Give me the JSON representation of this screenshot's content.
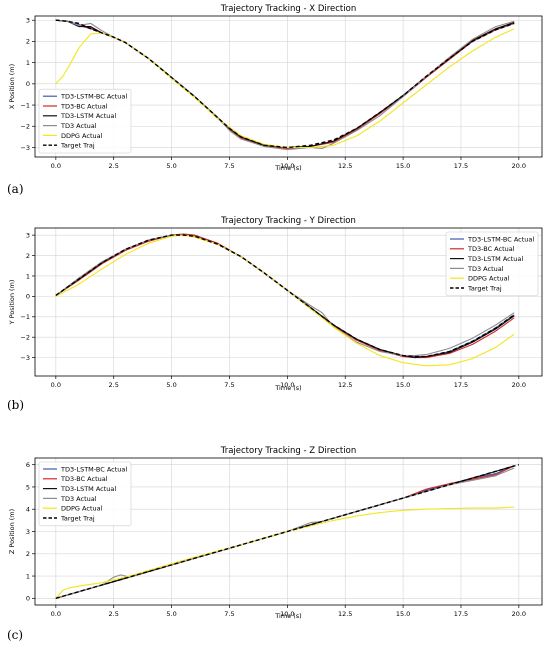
{
  "panel_labels": [
    "(a)",
    "(b)",
    "(c)"
  ],
  "chart_data": [
    {
      "type": "line",
      "title": "Trajectory Tracking - X Direction",
      "xlabel": "Time (s)",
      "ylabel": "X Position (m)",
      "xlim": [
        -0.9,
        21
      ],
      "ylim": [
        -3.45,
        3.2
      ],
      "xticks": [
        0.0,
        2.5,
        5.0,
        7.5,
        10.0,
        12.5,
        15.0,
        17.5,
        20.0
      ],
      "xtick_labels": [
        "0.0",
        "2.5",
        "5.0",
        "7.5",
        "10.0",
        "12.5",
        "15.0",
        "17.5",
        "20.0"
      ],
      "yticks": [
        -3,
        -2,
        -1,
        0,
        1,
        2,
        3
      ],
      "ytick_labels": [
        "−3",
        "−2",
        "−1",
        "0",
        "1",
        "2",
        "3"
      ],
      "grid": true,
      "legend_position": "lower-left",
      "series": [
        {
          "name": "TD3-LSTM-BC Actual",
          "color": "#3b5bb5",
          "dashed": false,
          "x": [
            0.0,
            0.5,
            1.0,
            1.5,
            2.0,
            2.5,
            3.0,
            4.0,
            5.0,
            6.0,
            7.0,
            7.5,
            8.0,
            9.0,
            10.0,
            11.0,
            12.0,
            13.0,
            14.0,
            15.0,
            16.0,
            17.0,
            18.0,
            19.0,
            19.8
          ],
          "y": [
            3.0,
            2.95,
            2.8,
            2.65,
            2.4,
            2.2,
            1.95,
            1.2,
            0.3,
            -0.6,
            -1.65,
            -2.1,
            -2.5,
            -2.9,
            -3.0,
            -2.95,
            -2.7,
            -2.15,
            -1.4,
            -0.55,
            0.35,
            1.2,
            2.0,
            2.55,
            2.85
          ]
        },
        {
          "name": "TD3-BC Actual",
          "color": "#d62728",
          "dashed": false,
          "x": [
            0.0,
            0.5,
            1.0,
            1.5,
            2.0,
            2.5,
            3.0,
            4.0,
            5.0,
            6.0,
            7.0,
            7.5,
            8.0,
            9.0,
            10.0,
            11.0,
            12.0,
            13.0,
            14.0,
            15.0,
            16.0,
            17.0,
            18.0,
            19.0,
            19.8
          ],
          "y": [
            3.0,
            2.95,
            2.75,
            2.6,
            2.4,
            2.2,
            1.95,
            1.2,
            0.3,
            -0.6,
            -1.6,
            -2.15,
            -2.55,
            -2.95,
            -3.05,
            -2.95,
            -2.75,
            -2.15,
            -1.4,
            -0.6,
            0.3,
            1.15,
            2.0,
            2.55,
            2.85
          ]
        },
        {
          "name": "TD3-LSTM Actual",
          "color": "#111111",
          "dashed": false,
          "x": [
            0.0,
            0.5,
            1.0,
            1.5,
            2.0,
            2.5,
            3.0,
            4.0,
            5.0,
            6.0,
            7.0,
            7.5,
            8.0,
            9.0,
            10.0,
            11.0,
            12.0,
            13.0,
            14.0,
            15.0,
            16.0,
            17.0,
            18.0,
            19.0,
            19.8
          ],
          "y": [
            3.0,
            2.95,
            2.7,
            2.7,
            2.4,
            2.2,
            1.95,
            1.2,
            0.3,
            -0.6,
            -1.6,
            -2.1,
            -2.5,
            -2.9,
            -3.0,
            -2.95,
            -2.7,
            -2.1,
            -1.35,
            -0.55,
            0.35,
            1.2,
            2.05,
            2.6,
            2.9
          ]
        },
        {
          "name": "TD3 Actual",
          "color": "#8c8c8c",
          "dashed": false,
          "x": [
            0.0,
            0.5,
            1.0,
            1.5,
            2.0,
            2.5,
            3.0,
            4.0,
            5.0,
            6.0,
            7.0,
            7.5,
            8.0,
            9.0,
            10.0,
            11.0,
            11.5,
            12.0,
            13.0,
            14.0,
            15.0,
            16.0,
            17.0,
            18.0,
            19.0,
            19.8
          ],
          "y": [
            3.0,
            2.95,
            2.75,
            2.85,
            2.5,
            2.2,
            1.95,
            1.2,
            0.3,
            -0.6,
            -1.6,
            -2.2,
            -2.6,
            -2.95,
            -3.1,
            -3.0,
            -3.05,
            -2.8,
            -2.2,
            -1.5,
            -0.6,
            0.35,
            1.25,
            2.1,
            2.7,
            2.95
          ]
        },
        {
          "name": "DDPG Actual",
          "color": "#f2e61d",
          "dashed": false,
          "x": [
            0.0,
            0.3,
            0.6,
            1.0,
            1.5,
            2.0,
            2.5,
            3.0,
            4.0,
            5.0,
            6.0,
            7.0,
            7.5,
            8.0,
            9.0,
            10.0,
            11.0,
            11.5,
            12.0,
            13.0,
            14.0,
            15.0,
            16.0,
            17.0,
            18.0,
            19.0,
            19.8
          ],
          "y": [
            0.0,
            0.35,
            0.9,
            1.7,
            2.35,
            2.4,
            2.2,
            1.95,
            1.2,
            0.25,
            -0.65,
            -1.65,
            -2.05,
            -2.45,
            -2.85,
            -3.0,
            -3.0,
            -2.95,
            -2.9,
            -2.45,
            -1.75,
            -0.9,
            -0.05,
            0.8,
            1.55,
            2.2,
            2.6
          ]
        },
        {
          "name": "Target Traj",
          "color": "#000000",
          "dashed": true,
          "x": [
            0.0,
            0.5,
            1.0,
            1.5,
            2.0,
            2.5,
            3.0,
            4.0,
            5.0,
            6.0,
            7.0,
            7.5,
            8.0,
            9.0,
            10.0,
            11.0,
            12.0,
            13.0,
            14.0,
            15.0,
            16.0,
            17.0,
            18.0,
            19.0,
            19.8
          ],
          "y": [
            3.0,
            2.95,
            2.85,
            2.6,
            2.4,
            2.2,
            1.95,
            1.2,
            0.3,
            -0.6,
            -1.6,
            -2.1,
            -2.5,
            -2.9,
            -3.0,
            -2.9,
            -2.65,
            -2.1,
            -1.35,
            -0.55,
            0.35,
            1.2,
            2.0,
            2.55,
            2.85
          ]
        }
      ]
    },
    {
      "type": "line",
      "title": "Trajectory Tracking - Y Direction",
      "xlabel": "Time (s)",
      "ylabel": "Y Position (m)",
      "xlim": [
        -0.9,
        21
      ],
      "ylim": [
        -3.9,
        3.35
      ],
      "xticks": [
        0.0,
        2.5,
        5.0,
        7.5,
        10.0,
        12.5,
        15.0,
        17.5,
        20.0
      ],
      "xtick_labels": [
        "0.0",
        "2.5",
        "5.0",
        "7.5",
        "10.0",
        "12.5",
        "15.0",
        "17.5",
        "20.0"
      ],
      "yticks": [
        -3,
        -2,
        -1,
        0,
        1,
        2,
        3
      ],
      "ytick_labels": [
        "−3",
        "−2",
        "−1",
        "0",
        "1",
        "2",
        "3"
      ],
      "grid": true,
      "legend_position": "upper-right",
      "series": [
        {
          "name": "TD3-LSTM-BC Actual",
          "color": "#3b5bb5",
          "dashed": false,
          "x": [
            0.0,
            1.0,
            2.0,
            3.0,
            4.0,
            5.0,
            5.5,
            6.0,
            7.0,
            8.0,
            9.0,
            10.0,
            11.0,
            12.0,
            13.0,
            14.0,
            15.0,
            15.5,
            16.0,
            17.0,
            18.0,
            19.0,
            19.8
          ],
          "y": [
            0.05,
            0.85,
            1.65,
            2.3,
            2.75,
            3.0,
            3.0,
            2.95,
            2.55,
            1.95,
            1.15,
            0.3,
            -0.55,
            -1.4,
            -2.1,
            -2.6,
            -2.9,
            -2.95,
            -2.95,
            -2.7,
            -2.2,
            -1.55,
            -0.9
          ]
        },
        {
          "name": "TD3-BC Actual",
          "color": "#d62728",
          "dashed": false,
          "x": [
            0.0,
            1.0,
            2.0,
            3.0,
            4.0,
            5.0,
            5.5,
            6.0,
            7.0,
            8.0,
            9.0,
            10.0,
            11.0,
            12.0,
            13.0,
            14.0,
            15.0,
            15.5,
            16.0,
            17.0,
            18.0,
            19.0,
            19.8
          ],
          "y": [
            0.05,
            0.8,
            1.6,
            2.25,
            2.7,
            3.0,
            3.05,
            3.0,
            2.6,
            1.95,
            1.15,
            0.3,
            -0.6,
            -1.45,
            -2.15,
            -2.65,
            -2.95,
            -3.0,
            -3.0,
            -2.8,
            -2.35,
            -1.7,
            -1.05
          ]
        },
        {
          "name": "TD3-LSTM Actual",
          "color": "#111111",
          "dashed": false,
          "x": [
            0.0,
            1.0,
            2.0,
            3.0,
            4.0,
            5.0,
            5.5,
            6.0,
            7.0,
            8.0,
            9.0,
            10.0,
            11.0,
            12.0,
            13.0,
            14.0,
            15.0,
            15.5,
            16.0,
            17.0,
            18.0,
            19.0,
            19.8
          ],
          "y": [
            0.05,
            0.85,
            1.65,
            2.3,
            2.75,
            3.0,
            3.0,
            2.95,
            2.55,
            1.95,
            1.15,
            0.3,
            -0.55,
            -1.4,
            -2.1,
            -2.6,
            -2.9,
            -3.0,
            -2.95,
            -2.75,
            -2.25,
            -1.6,
            -0.95
          ]
        },
        {
          "name": "TD3 Actual",
          "color": "#8c8c8c",
          "dashed": false,
          "x": [
            0.0,
            1.0,
            2.0,
            3.0,
            4.0,
            5.0,
            5.5,
            6.0,
            7.0,
            8.0,
            9.0,
            10.0,
            11.0,
            11.5,
            12.0,
            13.0,
            14.0,
            15.0,
            15.5,
            16.0,
            17.0,
            18.0,
            19.0,
            19.8
          ],
          "y": [
            0.05,
            0.9,
            1.7,
            2.3,
            2.75,
            3.0,
            3.0,
            2.95,
            2.55,
            1.95,
            1.15,
            0.3,
            -0.45,
            -0.8,
            -1.5,
            -2.25,
            -2.7,
            -2.9,
            -2.9,
            -2.85,
            -2.55,
            -2.05,
            -1.4,
            -0.8
          ]
        },
        {
          "name": "DDPG Actual",
          "color": "#f2e61d",
          "dashed": false,
          "x": [
            0.0,
            1.0,
            2.0,
            3.0,
            4.0,
            5.0,
            5.5,
            6.0,
            7.0,
            8.0,
            9.0,
            10.0,
            11.0,
            12.0,
            13.0,
            14.0,
            15.0,
            16.0,
            17.0,
            18.0,
            19.0,
            19.8
          ],
          "y": [
            0.0,
            0.6,
            1.35,
            2.05,
            2.6,
            2.95,
            3.0,
            2.9,
            2.55,
            1.95,
            1.15,
            0.3,
            -0.6,
            -1.5,
            -2.3,
            -2.9,
            -3.25,
            -3.4,
            -3.35,
            -3.05,
            -2.5,
            -1.85
          ]
        },
        {
          "name": "Target Traj",
          "color": "#000000",
          "dashed": true,
          "x": [
            0.0,
            1.0,
            2.0,
            3.0,
            4.0,
            5.0,
            5.5,
            6.0,
            7.0,
            8.0,
            9.0,
            10.0,
            11.0,
            12.0,
            13.0,
            14.0,
            15.0,
            15.5,
            16.0,
            17.0,
            18.0,
            19.0,
            19.8
          ],
          "y": [
            0.05,
            0.85,
            1.65,
            2.3,
            2.75,
            3.0,
            3.0,
            2.95,
            2.55,
            1.95,
            1.15,
            0.3,
            -0.55,
            -1.4,
            -2.1,
            -2.6,
            -2.9,
            -2.95,
            -2.95,
            -2.7,
            -2.2,
            -1.55,
            -0.9
          ]
        }
      ]
    },
    {
      "type": "line",
      "title": "Trajectory Tracking - Z Direction",
      "xlabel": "Time (s)",
      "ylabel": "Z Position (m)",
      "xlim": [
        -0.9,
        21
      ],
      "ylim": [
        -0.3,
        6.3
      ],
      "xticks": [
        0.0,
        2.5,
        5.0,
        7.5,
        10.0,
        12.5,
        15.0,
        17.5,
        20.0
      ],
      "xtick_labels": [
        "0.0",
        "2.5",
        "5.0",
        "7.5",
        "10.0",
        "12.5",
        "15.0",
        "17.5",
        "20.0"
      ],
      "yticks": [
        0,
        1,
        2,
        3,
        4,
        5,
        6
      ],
      "ytick_labels": [
        "0",
        "1",
        "2",
        "3",
        "4",
        "5",
        "6"
      ],
      "grid": true,
      "legend_position": "upper-left",
      "series": [
        {
          "name": "TD3-LSTM-BC Actual",
          "color": "#3b5bb5",
          "dashed": false,
          "x": [
            0.0,
            2.0,
            4.0,
            6.0,
            8.0,
            10.0,
            12.0,
            14.0,
            15.0,
            16.0,
            18.0,
            19.0,
            19.8
          ],
          "y": [
            0.0,
            0.6,
            1.2,
            1.8,
            2.4,
            3.0,
            3.6,
            4.2,
            4.5,
            4.85,
            5.4,
            5.6,
            5.95
          ]
        },
        {
          "name": "TD3-BC Actual",
          "color": "#d62728",
          "dashed": false,
          "x": [
            0.0,
            2.0,
            4.0,
            6.0,
            8.0,
            10.0,
            12.0,
            14.0,
            15.0,
            16.0,
            17.0,
            18.0,
            19.0,
            19.8
          ],
          "y": [
            0.0,
            0.6,
            1.2,
            1.8,
            2.4,
            3.0,
            3.6,
            4.2,
            4.5,
            4.9,
            5.15,
            5.35,
            5.55,
            5.95
          ]
        },
        {
          "name": "TD3-LSTM Actual",
          "color": "#111111",
          "dashed": false,
          "x": [
            0.0,
            2.0,
            4.0,
            6.0,
            8.0,
            10.0,
            12.0,
            14.0,
            15.0,
            16.0,
            17.0,
            18.0,
            19.0,
            19.8
          ],
          "y": [
            0.0,
            0.6,
            1.2,
            1.8,
            2.4,
            3.0,
            3.6,
            4.2,
            4.5,
            4.8,
            5.1,
            5.4,
            5.7,
            5.95
          ]
        },
        {
          "name": "TD3 Actual",
          "color": "#8c8c8c",
          "dashed": false,
          "x": [
            0.0,
            1.0,
            2.0,
            2.5,
            2.8,
            3.2,
            4.0,
            5.0,
            6.0,
            8.0,
            10.0,
            11.0,
            11.5,
            12.0,
            14.0,
            15.0,
            16.0,
            17.0,
            18.0,
            19.0,
            19.8
          ],
          "y": [
            0.0,
            0.3,
            0.6,
            0.95,
            1.05,
            0.95,
            1.25,
            1.5,
            1.8,
            2.4,
            3.0,
            3.4,
            3.45,
            3.6,
            4.2,
            4.5,
            4.8,
            5.1,
            5.3,
            5.5,
            5.85
          ]
        },
        {
          "name": "DDPG Actual",
          "color": "#f2e61d",
          "dashed": false,
          "x": [
            0.0,
            0.3,
            0.5,
            1.0,
            2.0,
            3.0,
            4.0,
            5.0,
            6.0,
            8.0,
            10.0,
            12.0,
            13.0,
            14.0,
            15.0,
            16.0,
            17.0,
            18.0,
            19.0,
            19.8
          ],
          "y": [
            0.0,
            0.35,
            0.45,
            0.55,
            0.7,
            0.95,
            1.25,
            1.55,
            1.85,
            2.4,
            3.0,
            3.5,
            3.7,
            3.85,
            3.95,
            4.0,
            4.03,
            4.05,
            4.05,
            4.1
          ]
        },
        {
          "name": "Target Traj",
          "color": "#000000",
          "dashed": true,
          "x": [
            0.0,
            20.0
          ],
          "y": [
            0.0,
            6.0
          ]
        }
      ]
    }
  ]
}
